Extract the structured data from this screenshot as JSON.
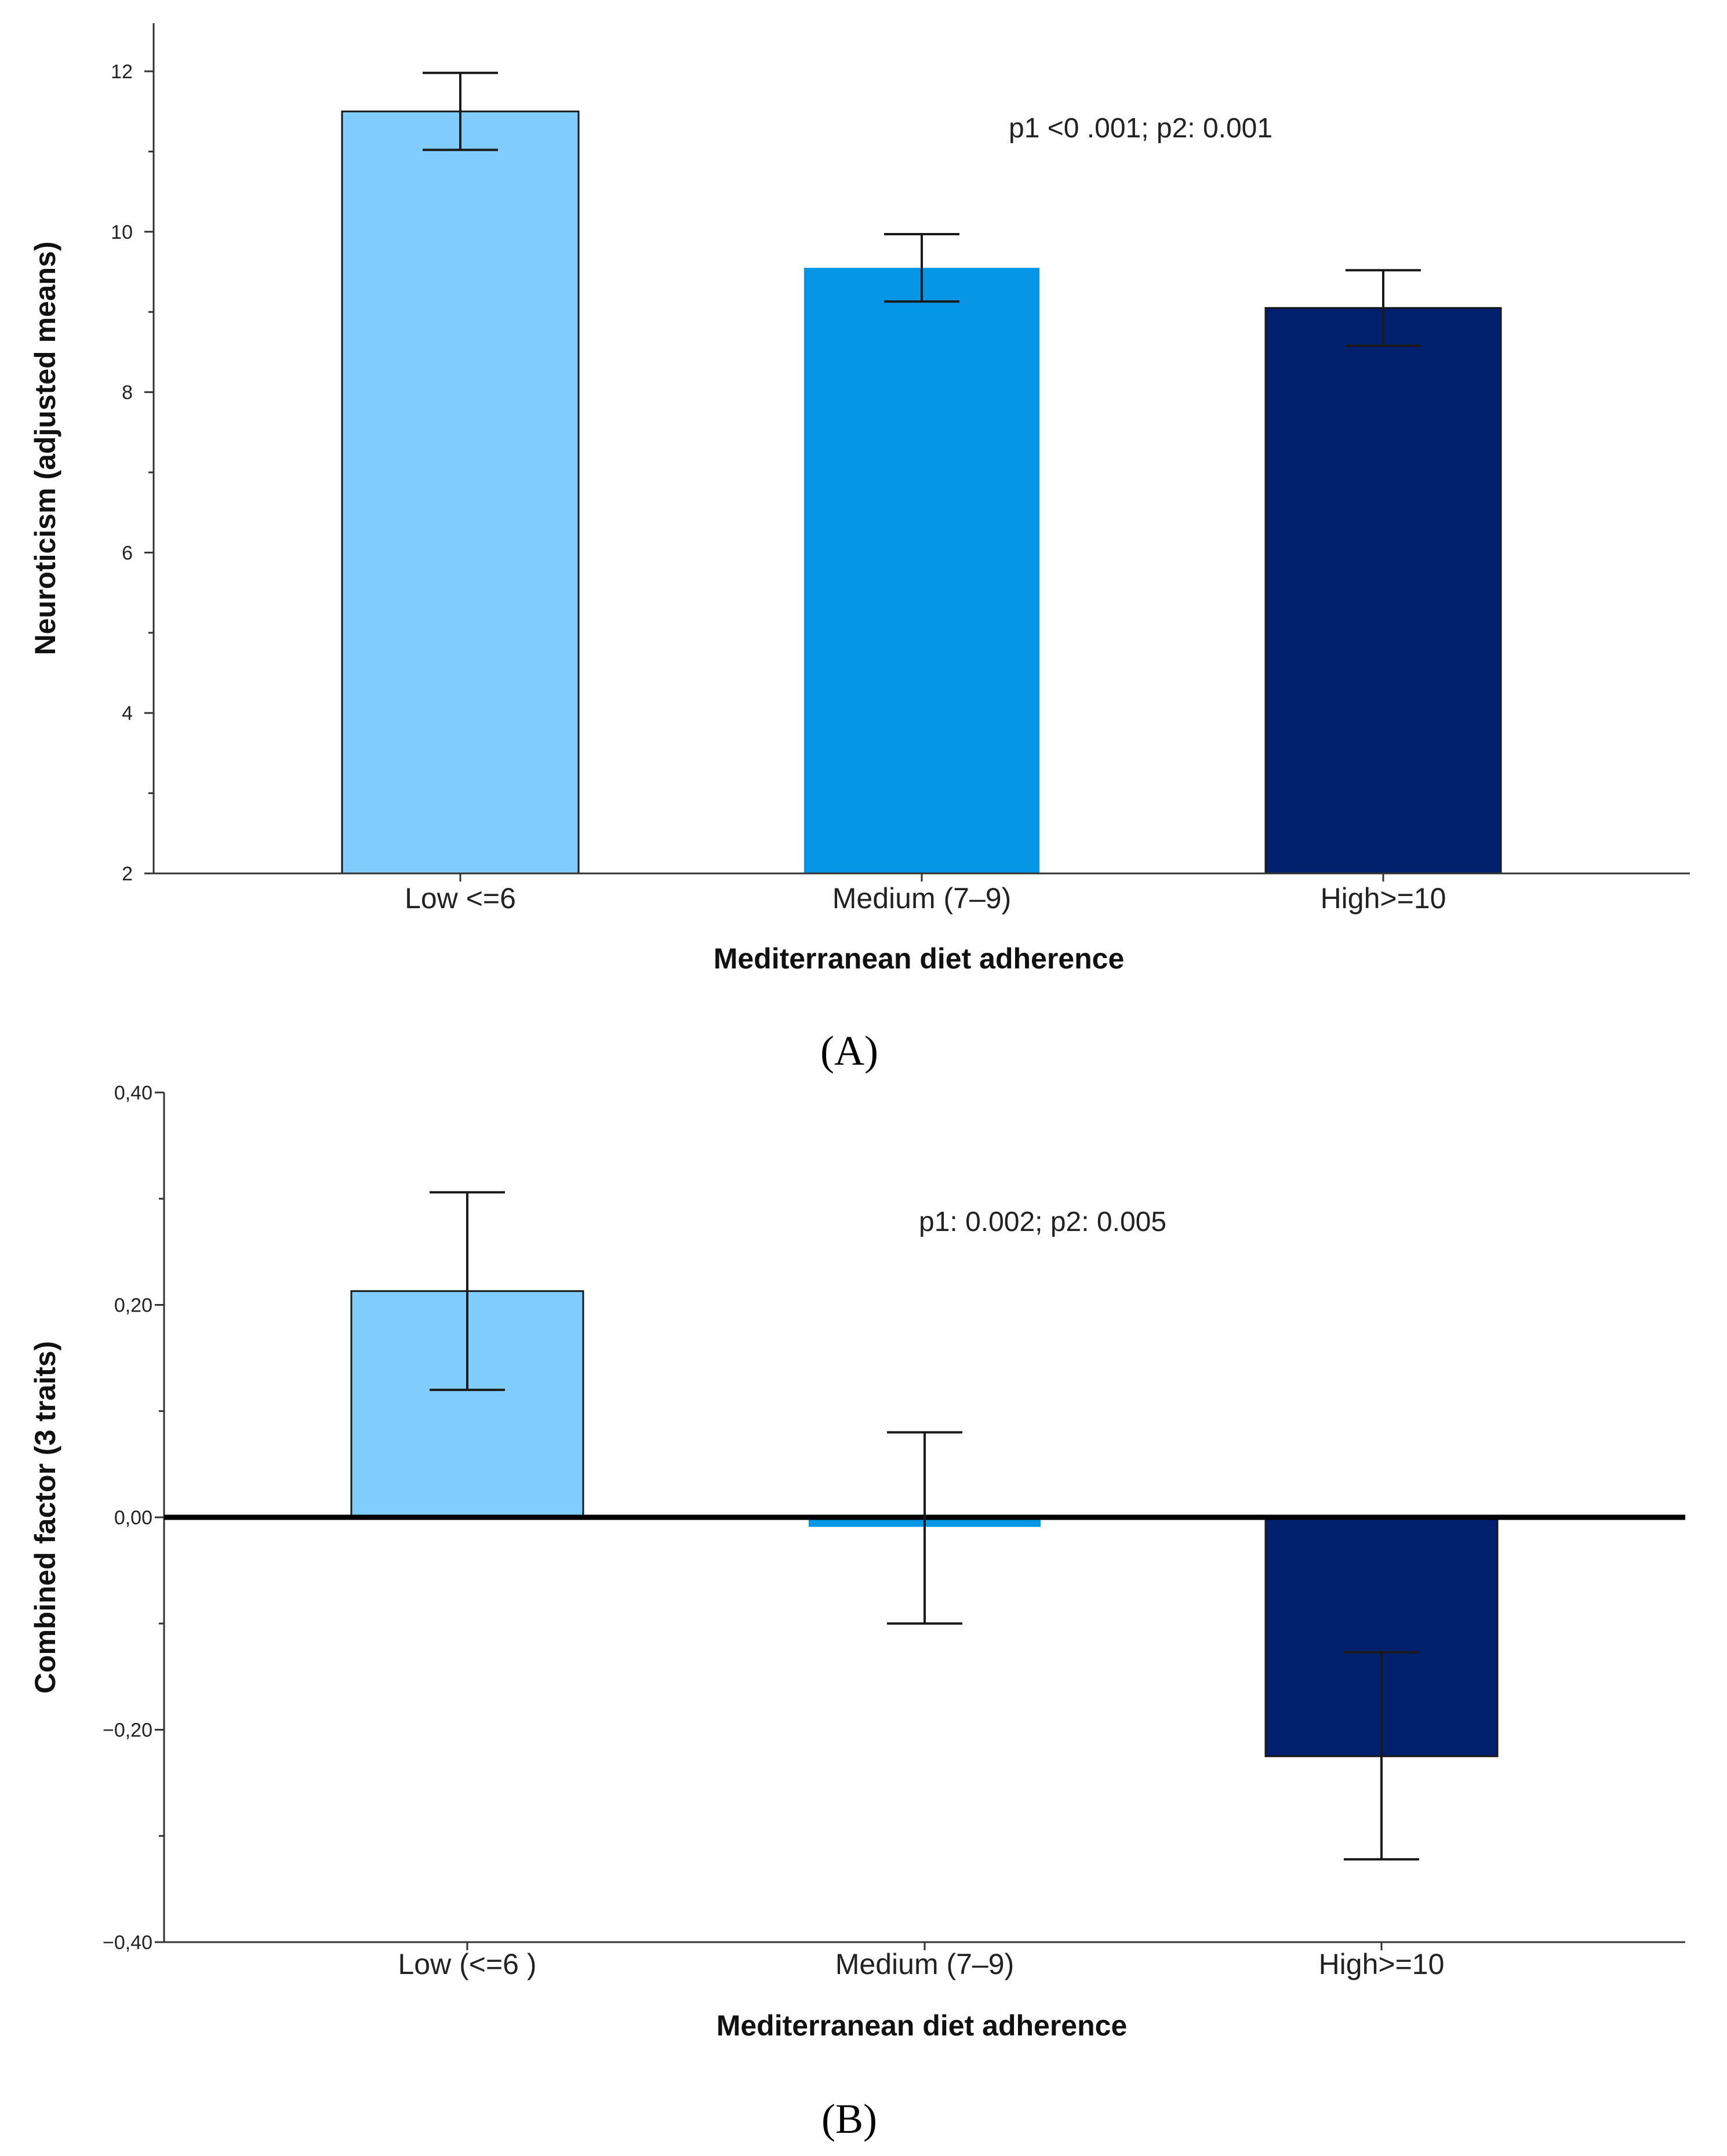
{
  "chart_data": [
    {
      "panel": "A",
      "panel_label": "(A)",
      "type": "bar",
      "title": "",
      "categories": [
        "Low <=6",
        "Medium (7–9)",
        "High>=10"
      ],
      "values": [
        11.5,
        9.55,
        9.05
      ],
      "error_lower": [
        11.02,
        9.13,
        8.58
      ],
      "error_upper": [
        11.98,
        9.97,
        9.52
      ],
      "colors": [
        "#80ccfc",
        "#0596e6",
        "#00206e"
      ],
      "xlabel": "Mediterranean diet adherence",
      "ylabel": "Neuroticism (adjusted means)",
      "ylim": [
        2,
        12.6
      ],
      "baseline": 2,
      "yticks": [
        2,
        4,
        6,
        8,
        10,
        12
      ],
      "ytick_labels": [
        "2",
        "4",
        "6",
        "8",
        "10",
        "12"
      ],
      "minor_ticks": [
        3,
        5,
        7,
        9,
        11
      ],
      "annotation": "p1 <0 .001; p2: 0.001",
      "grid": false
    },
    {
      "panel": "B",
      "panel_label": "(B)",
      "type": "bar",
      "title": "",
      "categories": [
        "Low (<=6 )",
        "Medium (7–9)",
        "High>=10"
      ],
      "values": [
        0.213,
        -0.009,
        -0.225
      ],
      "error_lower": [
        0.12,
        -0.1,
        -0.322
      ],
      "error_upper": [
        0.306,
        0.08,
        -0.127
      ],
      "colors": [
        "#80ccfc",
        "#0596e6",
        "#00206e"
      ],
      "xlabel": "Mediterranean diet adherence",
      "ylabel": "Combined factor (3 traits)",
      "ylim": [
        -0.4,
        0.4
      ],
      "baseline": 0,
      "yticks": [
        -0.4,
        -0.2,
        0.0,
        0.2,
        0.4
      ],
      "ytick_labels": [
        "−0,40",
        "−0,20",
        "0,00",
        "0,20",
        "0,40"
      ],
      "minor_ticks": [
        -0.3,
        -0.1,
        0.1,
        0.3
      ],
      "annotation": "p1: 0.002;   p2: 0.005",
      "grid": false
    }
  ]
}
